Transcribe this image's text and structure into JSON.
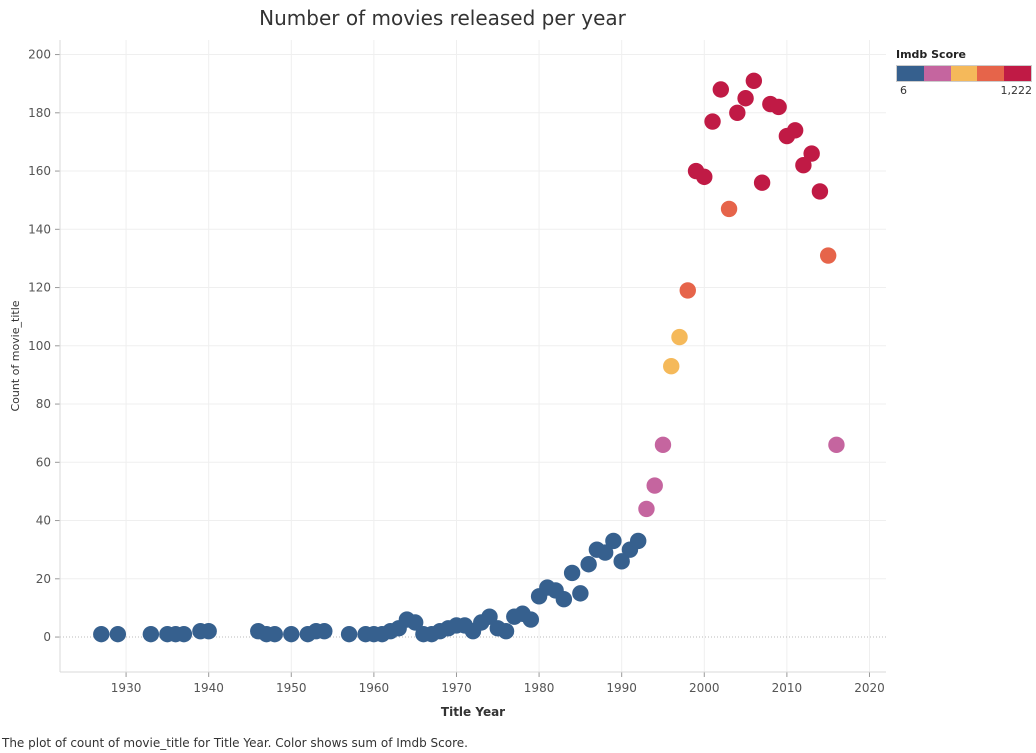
{
  "chart_data": {
    "type": "scatter",
    "title": "Number of movies released per year",
    "xlabel": "Title Year",
    "ylabel": "Count of movie_title",
    "xlim": [
      1922,
      2022
    ],
    "ylim": [
      -12,
      205
    ],
    "x_ticks": [
      1930,
      1940,
      1950,
      1960,
      1970,
      1980,
      1990,
      2000,
      2010,
      2020
    ],
    "y_ticks": [
      0,
      20,
      40,
      60,
      80,
      100,
      120,
      140,
      160,
      180,
      200
    ],
    "x_tick_labels": [
      "1930",
      "1940",
      "1950",
      "1960",
      "1970",
      "1980",
      "1990",
      "2000",
      "2010",
      "2020"
    ],
    "y_tick_labels": [
      "0",
      "20",
      "40",
      "60",
      "80",
      "100",
      "120",
      "140",
      "160",
      "180",
      "200"
    ],
    "grid": true,
    "legend": {
      "title": "Imdb Score",
      "min_label": "6",
      "max_label": "1,222",
      "placement": "top-right",
      "colors": [
        "#36608e",
        "#c5659f",
        "#f5b95a",
        "#e6644a",
        "#c01a45"
      ]
    },
    "points": [
      {
        "x": 1927,
        "y": 1,
        "c": 0
      },
      {
        "x": 1929,
        "y": 1,
        "c": 0
      },
      {
        "x": 1933,
        "y": 1,
        "c": 0
      },
      {
        "x": 1935,
        "y": 1,
        "c": 0
      },
      {
        "x": 1936,
        "y": 1,
        "c": 0
      },
      {
        "x": 1937,
        "y": 1,
        "c": 0
      },
      {
        "x": 1939,
        "y": 2,
        "c": 0
      },
      {
        "x": 1940,
        "y": 2,
        "c": 0
      },
      {
        "x": 1946,
        "y": 2,
        "c": 0
      },
      {
        "x": 1947,
        "y": 1,
        "c": 0
      },
      {
        "x": 1948,
        "y": 1,
        "c": 0
      },
      {
        "x": 1950,
        "y": 1,
        "c": 0
      },
      {
        "x": 1952,
        "y": 1,
        "c": 0
      },
      {
        "x": 1953,
        "y": 2,
        "c": 0
      },
      {
        "x": 1954,
        "y": 2,
        "c": 0
      },
      {
        "x": 1957,
        "y": 1,
        "c": 0
      },
      {
        "x": 1959,
        "y": 1,
        "c": 0
      },
      {
        "x": 1960,
        "y": 1,
        "c": 0
      },
      {
        "x": 1961,
        "y": 1,
        "c": 0
      },
      {
        "x": 1962,
        "y": 2,
        "c": 0
      },
      {
        "x": 1963,
        "y": 3,
        "c": 0
      },
      {
        "x": 1964,
        "y": 6,
        "c": 0
      },
      {
        "x": 1965,
        "y": 5,
        "c": 0
      },
      {
        "x": 1966,
        "y": 1,
        "c": 0
      },
      {
        "x": 1967,
        "y": 1,
        "c": 0
      },
      {
        "x": 1968,
        "y": 2,
        "c": 0
      },
      {
        "x": 1969,
        "y": 3,
        "c": 0
      },
      {
        "x": 1970,
        "y": 4,
        "c": 0
      },
      {
        "x": 1971,
        "y": 4,
        "c": 0
      },
      {
        "x": 1972,
        "y": 2,
        "c": 0
      },
      {
        "x": 1973,
        "y": 5,
        "c": 0
      },
      {
        "x": 1974,
        "y": 7,
        "c": 0
      },
      {
        "x": 1975,
        "y": 3,
        "c": 0
      },
      {
        "x": 1976,
        "y": 2,
        "c": 0
      },
      {
        "x": 1977,
        "y": 7,
        "c": 0
      },
      {
        "x": 1978,
        "y": 8,
        "c": 0
      },
      {
        "x": 1979,
        "y": 6,
        "c": 0
      },
      {
        "x": 1980,
        "y": 14,
        "c": 0
      },
      {
        "x": 1981,
        "y": 17,
        "c": 0
      },
      {
        "x": 1982,
        "y": 16,
        "c": 0
      },
      {
        "x": 1983,
        "y": 13,
        "c": 0
      },
      {
        "x": 1984,
        "y": 22,
        "c": 0
      },
      {
        "x": 1985,
        "y": 15,
        "c": 0
      },
      {
        "x": 1986,
        "y": 25,
        "c": 0
      },
      {
        "x": 1987,
        "y": 30,
        "c": 0
      },
      {
        "x": 1988,
        "y": 29,
        "c": 0
      },
      {
        "x": 1989,
        "y": 33,
        "c": 0
      },
      {
        "x": 1990,
        "y": 26,
        "c": 0
      },
      {
        "x": 1991,
        "y": 30,
        "c": 0
      },
      {
        "x": 1992,
        "y": 33,
        "c": 0
      },
      {
        "x": 1993,
        "y": 44,
        "c": 1
      },
      {
        "x": 1994,
        "y": 52,
        "c": 1
      },
      {
        "x": 1995,
        "y": 66,
        "c": 1
      },
      {
        "x": 1996,
        "y": 93,
        "c": 2
      },
      {
        "x": 1997,
        "y": 103,
        "c": 2
      },
      {
        "x": 1998,
        "y": 119,
        "c": 3
      },
      {
        "x": 1999,
        "y": 160,
        "c": 4
      },
      {
        "x": 2000,
        "y": 158,
        "c": 4
      },
      {
        "x": 2001,
        "y": 177,
        "c": 4
      },
      {
        "x": 2002,
        "y": 188,
        "c": 4
      },
      {
        "x": 2003,
        "y": 147,
        "c": 3
      },
      {
        "x": 2004,
        "y": 180,
        "c": 4
      },
      {
        "x": 2005,
        "y": 185,
        "c": 4
      },
      {
        "x": 2006,
        "y": 191,
        "c": 4
      },
      {
        "x": 2007,
        "y": 156,
        "c": 4
      },
      {
        "x": 2008,
        "y": 183,
        "c": 4
      },
      {
        "x": 2009,
        "y": 182,
        "c": 4
      },
      {
        "x": 2010,
        "y": 172,
        "c": 4
      },
      {
        "x": 2011,
        "y": 174,
        "c": 4
      },
      {
        "x": 2012,
        "y": 162,
        "c": 4
      },
      {
        "x": 2013,
        "y": 166,
        "c": 4
      },
      {
        "x": 2014,
        "y": 153,
        "c": 4
      },
      {
        "x": 2015,
        "y": 131,
        "c": 3
      },
      {
        "x": 2016,
        "y": 66,
        "c": 1
      }
    ]
  },
  "footnote": "The plot of count of movie_title for Title Year.  Color shows sum of Imdb Score."
}
